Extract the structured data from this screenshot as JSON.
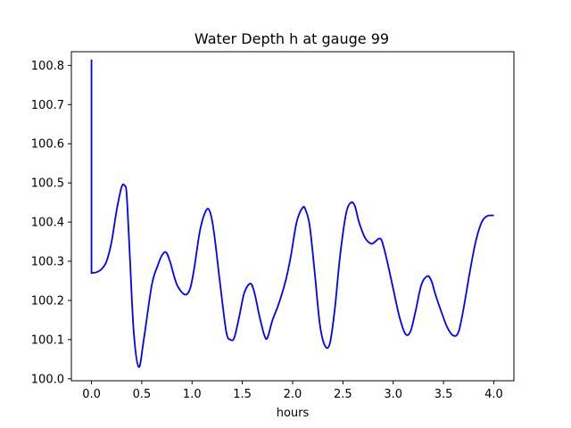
{
  "chart_data": {
    "type": "line",
    "title": "Water Depth h at gauge 99",
    "xlabel": "hours",
    "ylabel": "",
    "xlim": [
      -0.2,
      4.2
    ],
    "ylim": [
      99.995,
      100.835
    ],
    "xticks": [
      0.0,
      0.5,
      1.0,
      1.5,
      2.0,
      2.5,
      3.0,
      3.5,
      4.0
    ],
    "xtick_labels": [
      "0.0",
      "0.5",
      "1.0",
      "1.5",
      "2.0",
      "2.5",
      "3.0",
      "3.5",
      "4.0"
    ],
    "yticks": [
      100.0,
      100.1,
      100.2,
      100.3,
      100.4,
      100.5,
      100.6,
      100.7,
      100.8
    ],
    "ytick_labels": [
      "100.0",
      "100.1",
      "100.2",
      "100.3",
      "100.4",
      "100.5",
      "100.6",
      "100.7",
      "100.8"
    ],
    "grid": false,
    "series": [
      {
        "color": "#0000ff",
        "x": [
          0.0,
          0.0,
          0.05,
          0.1,
          0.15,
          0.2,
          0.25,
          0.3,
          0.33,
          0.35,
          0.38,
          0.42,
          0.47,
          0.52,
          0.6,
          0.66,
          0.7,
          0.74,
          0.78,
          0.85,
          0.93,
          0.98,
          1.02,
          1.08,
          1.14,
          1.18,
          1.22,
          1.28,
          1.34,
          1.38,
          1.42,
          1.47,
          1.52,
          1.58,
          1.62,
          1.67,
          1.72,
          1.75,
          1.8,
          1.86,
          1.93,
          1.98,
          2.04,
          2.1,
          2.13,
          2.17,
          2.22,
          2.27,
          2.32,
          2.37,
          2.42,
          2.47,
          2.53,
          2.58,
          2.62,
          2.66,
          2.72,
          2.78,
          2.82,
          2.86,
          2.89,
          2.94,
          3.0,
          3.06,
          3.12,
          3.17,
          3.22,
          3.28,
          3.34,
          3.38,
          3.42,
          3.48,
          3.54,
          3.6,
          3.65,
          3.7,
          3.76,
          3.82,
          3.88,
          3.93,
          3.97,
          4.0
        ],
        "y": [
          100.815,
          100.27,
          100.272,
          100.28,
          100.3,
          100.35,
          100.43,
          100.49,
          100.493,
          100.47,
          100.32,
          100.12,
          100.03,
          100.1,
          100.24,
          100.29,
          100.315,
          100.323,
          100.3,
          100.24,
          100.215,
          100.23,
          100.28,
          100.38,
          100.43,
          100.425,
          100.37,
          100.24,
          100.12,
          100.1,
          100.105,
          100.16,
          100.22,
          100.243,
          100.22,
          100.16,
          100.11,
          100.105,
          100.15,
          100.19,
          100.25,
          100.31,
          100.4,
          100.437,
          100.43,
          100.39,
          100.27,
          100.14,
          100.085,
          100.09,
          100.18,
          100.31,
          100.42,
          100.45,
          100.44,
          100.4,
          100.36,
          100.345,
          100.35,
          100.358,
          100.35,
          100.3,
          100.23,
          100.16,
          100.115,
          100.12,
          100.17,
          100.24,
          100.262,
          100.25,
          100.215,
          100.17,
          100.13,
          100.11,
          100.12,
          100.18,
          100.27,
          100.35,
          100.4,
          100.415,
          100.417,
          100.417
        ]
      }
    ]
  }
}
